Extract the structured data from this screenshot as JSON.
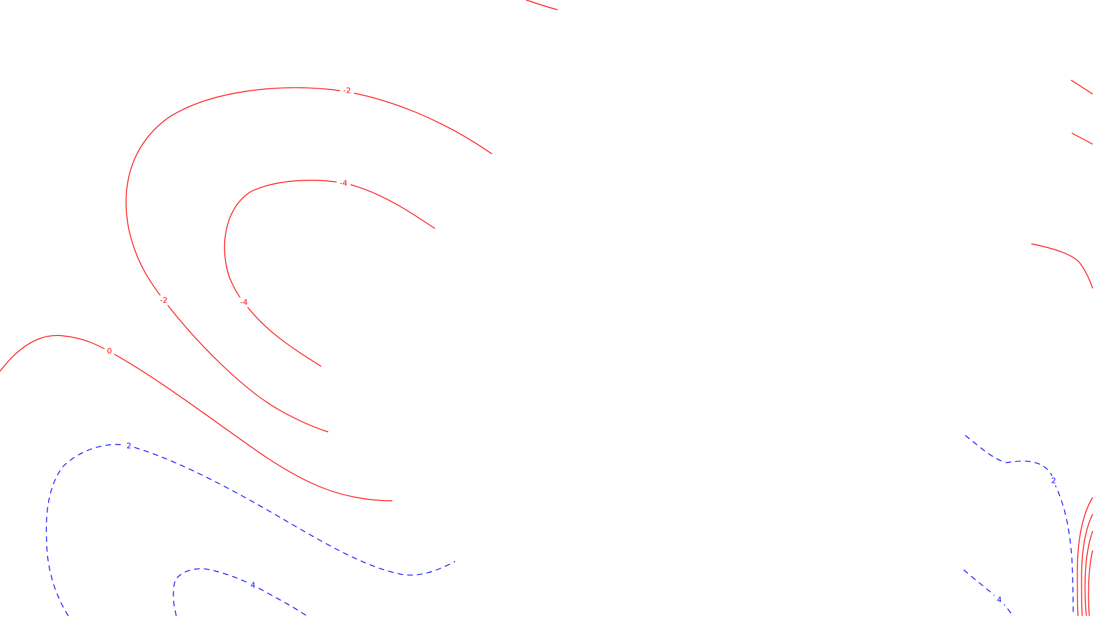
{
  "colors": {
    "background": "#ffffff",
    "negative_contour": "#ff0000",
    "positive_contour": "#0000ff"
  },
  "line_styles": {
    "negative": "solid",
    "positive": "dashed"
  },
  "contour_labels": {
    "neg_top_left_2": "-2",
    "neg_top_left_4a": "-4",
    "neg_left_2": "-2",
    "neg_left_4": "-4",
    "zero": "0",
    "pos_bottom_left_2": "2",
    "pos_bottom_left_4": "4",
    "pos_bottom_right_2": "2",
    "pos_bottom_right_4": "4"
  }
}
